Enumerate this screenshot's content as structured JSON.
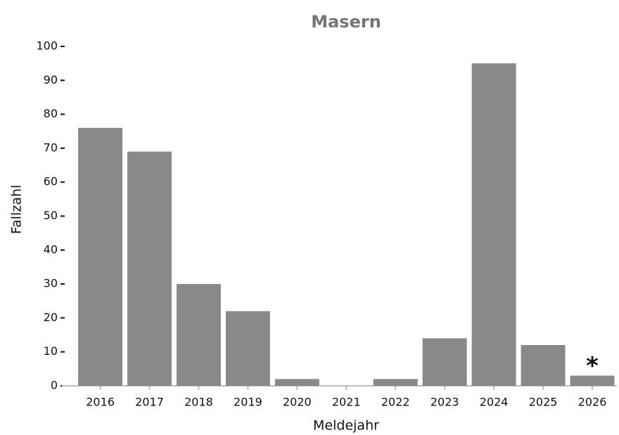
{
  "chart_data": {
    "type": "bar",
    "title": "Masern",
    "x_label": "Meldejahr",
    "y_label": "Fallzahl",
    "categories": [
      "2016",
      "2017",
      "2018",
      "2019",
      "2020",
      "2021",
      "2022",
      "2023",
      "2024",
      "2025",
      "2026"
    ],
    "values": [
      76,
      69,
      30,
      22,
      2,
      0,
      2,
      14,
      95,
      12,
      3
    ],
    "color": "#898989",
    "ylim": [
      0,
      100
    ],
    "yticks": [
      0,
      10,
      20,
      30,
      40,
      50,
      60,
      70,
      80,
      90,
      100
    ],
    "annotation": "*"
  }
}
